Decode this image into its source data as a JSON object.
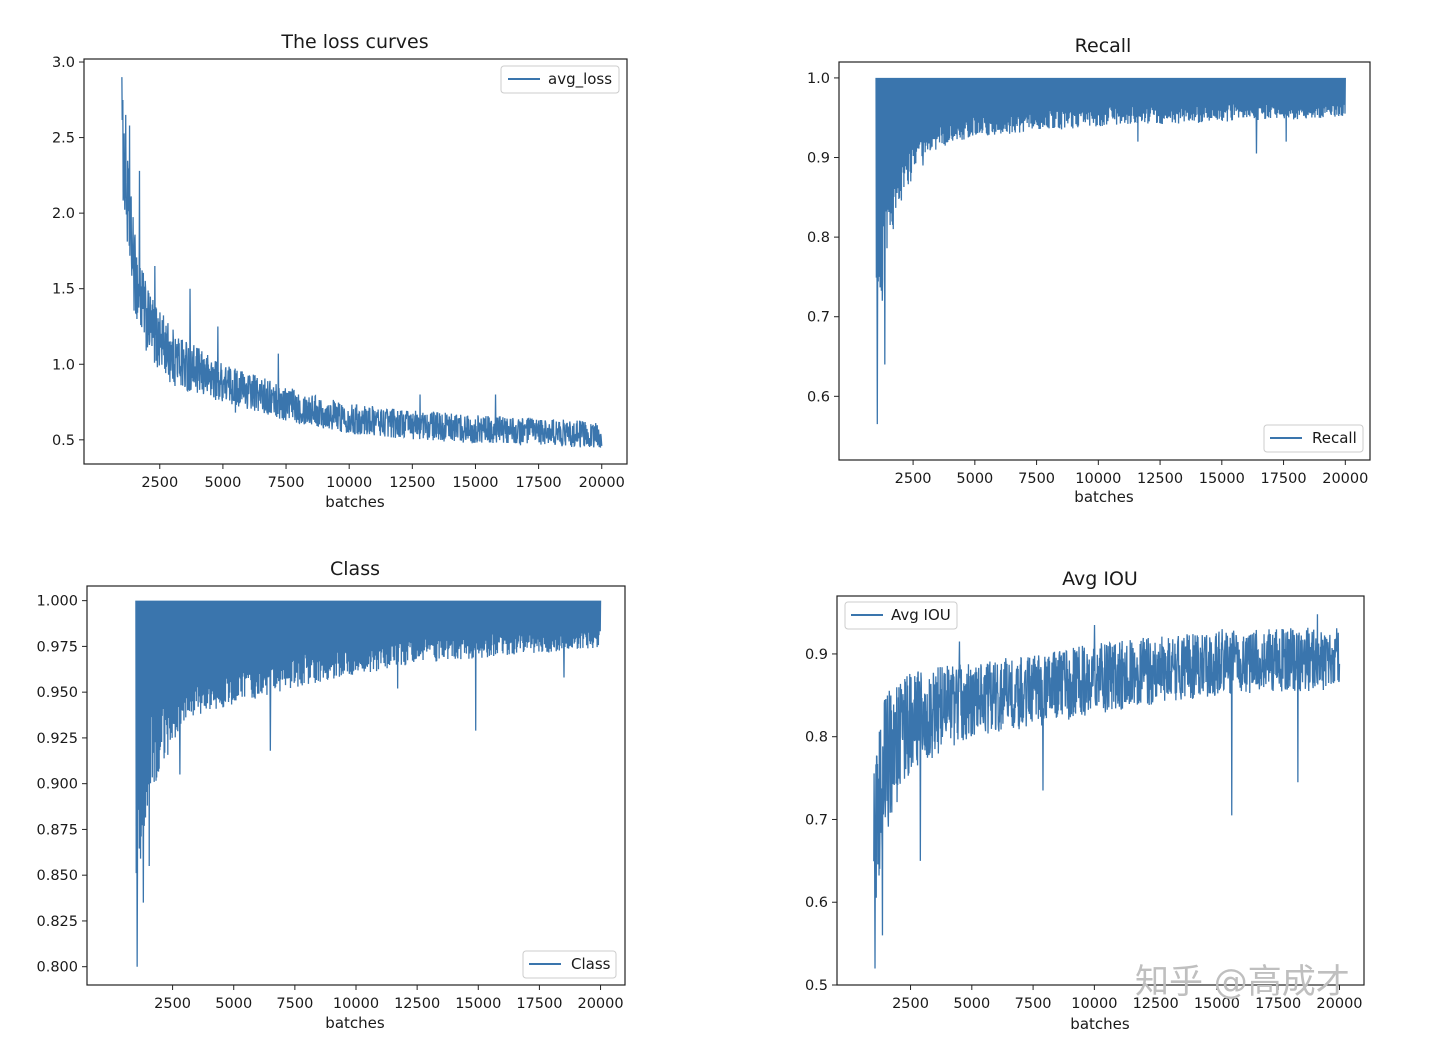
{
  "colors": {
    "line": "#3a75ad",
    "frame": "#222222",
    "legend_border": "#cccccc"
  },
  "watermark": "知乎 @高成才",
  "chart_data": [
    {
      "id": "loss",
      "type": "line",
      "title": "The loss curves",
      "xlabel": "batches",
      "ylabel": "",
      "xlim": [
        -500,
        21000
      ],
      "ylim": [
        0.34,
        3.02
      ],
      "xticks": [
        2500,
        5000,
        7500,
        10000,
        12500,
        15000,
        17500,
        20000
      ],
      "yticks": [
        0.5,
        1.0,
        1.5,
        2.0,
        2.5,
        3.0
      ],
      "ytick_labels": [
        "0.5",
        "1.0",
        "1.5",
        "2.0",
        "2.5",
        "3.0"
      ],
      "legend": "upper right",
      "series": [
        {
          "name": "avg_loss",
          "x_range": [
            1000,
            20000
          ],
          "trend": [
            [
              1000,
              2.5
            ],
            [
              1200,
              2.1
            ],
            [
              1500,
              1.6
            ],
            [
              2000,
              1.28
            ],
            [
              3000,
              1.05
            ],
            [
              4000,
              0.95
            ],
            [
              5000,
              0.88
            ],
            [
              7500,
              0.74
            ],
            [
              10000,
              0.64
            ],
            [
              12500,
              0.6
            ],
            [
              15000,
              0.57
            ],
            [
              17500,
              0.55
            ],
            [
              20000,
              0.53
            ]
          ],
          "noise": [
            [
              1000,
              0.35
            ],
            [
              2000,
              0.22
            ],
            [
              5000,
              0.13
            ],
            [
              10000,
              0.1
            ],
            [
              20000,
              0.09
            ]
          ],
          "spikes": [
            [
              1000,
              2.9
            ],
            [
              1150,
              2.65
            ],
            [
              1300,
              2.58
            ],
            [
              1700,
              2.28
            ],
            [
              2300,
              1.65
            ],
            [
              3700,
              1.5
            ],
            [
              4800,
              1.25
            ],
            [
              7200,
              1.07
            ],
            [
              12800,
              0.8
            ],
            [
              15800,
              0.8
            ]
          ],
          "dips": [
            [
              2400,
              0.98
            ],
            [
              3500,
              0.85
            ],
            [
              5500,
              0.68
            ],
            [
              20000,
              0.46
            ]
          ]
        }
      ]
    },
    {
      "id": "recall",
      "type": "line",
      "title": "Recall",
      "xlabel": "batches",
      "ylabel": "",
      "xlim": [
        -500,
        21000
      ],
      "ylim": [
        0.52,
        1.02
      ],
      "xticks": [
        2500,
        5000,
        7500,
        10000,
        12500,
        15000,
        17500,
        20000
      ],
      "yticks": [
        0.6,
        0.7,
        0.8,
        0.9,
        1.0
      ],
      "ytick_labels": [
        "0.6",
        "0.7",
        "0.8",
        "0.9",
        "1.0"
      ],
      "legend": "lower right",
      "series": [
        {
          "name": "Recall",
          "x_range": [
            1000,
            20000
          ],
          "top": 1.0,
          "base_trend": [
            [
              1000,
              0.78
            ],
            [
              1500,
              0.88
            ],
            [
              2500,
              0.93
            ],
            [
              5000,
              0.955
            ],
            [
              10000,
              0.965
            ],
            [
              20000,
              0.97
            ]
          ],
          "noise": [
            [
              1000,
              0.1
            ],
            [
              3000,
              0.03
            ],
            [
              20000,
              0.02
            ]
          ],
          "dips": [
            [
              1050,
              0.565
            ],
            [
              1250,
              0.72
            ],
            [
              1350,
              0.64
            ],
            [
              1700,
              0.81
            ],
            [
              2400,
              0.87
            ],
            [
              2900,
              0.89
            ],
            [
              11600,
              0.92
            ],
            [
              16400,
              0.905
            ],
            [
              17600,
              0.92
            ]
          ]
        }
      ]
    },
    {
      "id": "class",
      "type": "line",
      "title": "Class",
      "xlabel": "batches",
      "ylabel": "",
      "xlim": [
        -1000,
        21000
      ],
      "ylim": [
        0.79,
        1.008
      ],
      "xticks": [
        2500,
        5000,
        7500,
        10000,
        12500,
        15000,
        17500,
        20000
      ],
      "yticks": [
        0.8,
        0.825,
        0.85,
        0.875,
        0.9,
        0.925,
        0.95,
        0.975,
        1.0
      ],
      "ytick_labels": [
        "0.800",
        "0.825",
        "0.850",
        "0.875",
        "0.900",
        "0.925",
        "0.950",
        "0.975",
        "1.000"
      ],
      "legend": "lower right",
      "series": [
        {
          "name": "Class",
          "x_range": [
            1000,
            20000
          ],
          "top": 1.0,
          "base_trend": [
            [
              1000,
              0.9
            ],
            [
              1500,
              0.94
            ],
            [
              3000,
              0.955
            ],
            [
              7500,
              0.97
            ],
            [
              12500,
              0.98
            ],
            [
              20000,
              0.984
            ]
          ],
          "noise": [
            [
              1000,
              0.06
            ],
            [
              3000,
              0.02
            ],
            [
              20000,
              0.01
            ]
          ],
          "dips": [
            [
              1050,
              0.8
            ],
            [
              1300,
              0.835
            ],
            [
              1550,
              0.855
            ],
            [
              2800,
              0.905
            ],
            [
              6500,
              0.918
            ],
            [
              14900,
              0.929
            ],
            [
              11700,
              0.952
            ],
            [
              18500,
              0.958
            ]
          ]
        }
      ]
    },
    {
      "id": "iou",
      "type": "line",
      "title": "Avg IOU",
      "xlabel": "batches",
      "ylabel": "",
      "xlim": [
        -500,
        21000
      ],
      "ylim": [
        0.5,
        0.97
      ],
      "xticks": [
        2500,
        5000,
        7500,
        10000,
        12500,
        15000,
        17500,
        20000
      ],
      "yticks": [
        0.5,
        0.6,
        0.7,
        0.8,
        0.9
      ],
      "ytick_labels": [
        "0.5",
        "0.6",
        "0.7",
        "0.8",
        "0.9"
      ],
      "legend": "upper left",
      "series": [
        {
          "name": "Avg IOU",
          "x_range": [
            1000,
            20000
          ],
          "trend": [
            [
              1000,
              0.68
            ],
            [
              1500,
              0.77
            ],
            [
              2500,
              0.82
            ],
            [
              5000,
              0.845
            ],
            [
              7500,
              0.855
            ],
            [
              10000,
              0.87
            ],
            [
              12500,
              0.88
            ],
            [
              15000,
              0.89
            ],
            [
              20000,
              0.895
            ]
          ],
          "noise": [
            [
              1000,
              0.1
            ],
            [
              2500,
              0.06
            ],
            [
              5000,
              0.045
            ],
            [
              20000,
              0.038
            ]
          ],
          "spikes": [
            [
              4500,
              0.915
            ],
            [
              10000,
              0.935
            ],
            [
              19100,
              0.948
            ]
          ],
          "dips": [
            [
              1050,
              0.52
            ],
            [
              1350,
              0.56
            ],
            [
              2900,
              0.65
            ],
            [
              7900,
              0.735
            ],
            [
              15600,
              0.705
            ],
            [
              18300,
              0.745
            ]
          ]
        }
      ]
    }
  ]
}
